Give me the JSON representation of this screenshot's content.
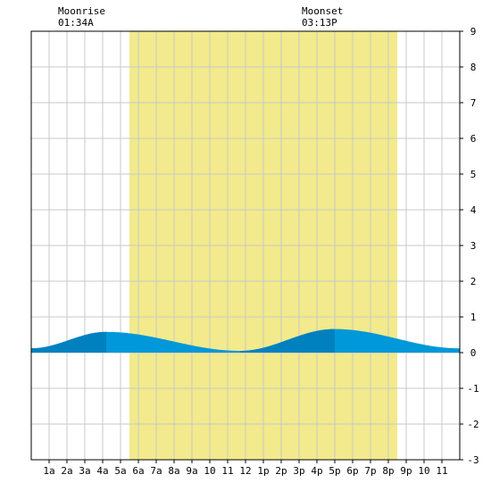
{
  "moon": {
    "rise_label": "Moonrise",
    "rise_time": "01:34A",
    "set_label": "Moonset",
    "set_time": "03:13P"
  },
  "chart_data": {
    "type": "area",
    "title": "",
    "xlabel": "",
    "ylabel": "",
    "x_range_hours": [
      0,
      24
    ],
    "ylim": [
      -3,
      9
    ],
    "x_tick_labels": [
      "1a",
      "2a",
      "3a",
      "4a",
      "5a",
      "6a",
      "7a",
      "8a",
      "9a",
      "10",
      "11",
      "12",
      "1p",
      "2p",
      "3p",
      "4p",
      "5p",
      "6p",
      "7p",
      "8p",
      "9p",
      "10",
      "11"
    ],
    "y_tick_labels": [
      "9",
      "8",
      "7",
      "6",
      "5",
      "4",
      "3",
      "2",
      "1",
      "0",
      "-1",
      "-2",
      "-3"
    ],
    "grid": true,
    "daylight_hours": [
      5.5,
      20.5
    ],
    "tide_extremes_hours": [
      {
        "hour": 0.0,
        "value": 0.12
      },
      {
        "hour": 4.2,
        "value": 0.58
      },
      {
        "hour": 11.7,
        "value": 0.05
      },
      {
        "hour": 17.0,
        "value": 0.66
      },
      {
        "hour": 24.0,
        "value": 0.12
      }
    ],
    "rising_shading": [
      [
        0.0,
        4.2
      ],
      [
        11.7,
        17.0
      ]
    ],
    "colors": {
      "daylight": "#f2ea8c",
      "tide": "#0098d8",
      "tide_rising": "#0081bf",
      "grid": "#c8c8c8",
      "axis": "#000000"
    }
  }
}
